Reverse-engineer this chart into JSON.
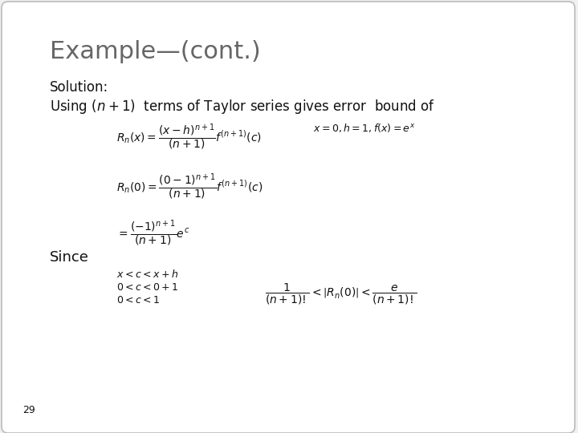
{
  "background_color": "#f0f0f0",
  "border_color": "#bbbbbb",
  "title": "Example—(cont.)",
  "title_color": "#666666",
  "title_fontsize": 22,
  "text_color": "#111111",
  "slide_number": "29",
  "formulas": {
    "solution_label": "Solution:",
    "using_text": "Using $(n+1)$  terms of Taylor series gives error  bound of",
    "rn_x": "$R_n(x)=\\dfrac{(x-h)^{n+1}}{(n+1)}f^{(n+1)}(c)$",
    "rn_x_condition": "$x=0, h=1, f(x)=e^x$",
    "rn_0": "$R_n(0)=\\dfrac{(0-1)^{n+1}}{(n+1)}f^{(n+1)}(c)$",
    "rn_simplified": "$=\\dfrac{(-1)^{n+1}}{(n+1)}e^c$",
    "since_label": "Since",
    "condition1": "$x < c < x+h$",
    "condition2": "$0 < c < 0+1$",
    "condition3": "$0 < c < 1$",
    "bound": "$\\dfrac{1}{(n+1)!}<\\left|R_n(0)\\right|<\\dfrac{e}{(n+1)!}$"
  }
}
